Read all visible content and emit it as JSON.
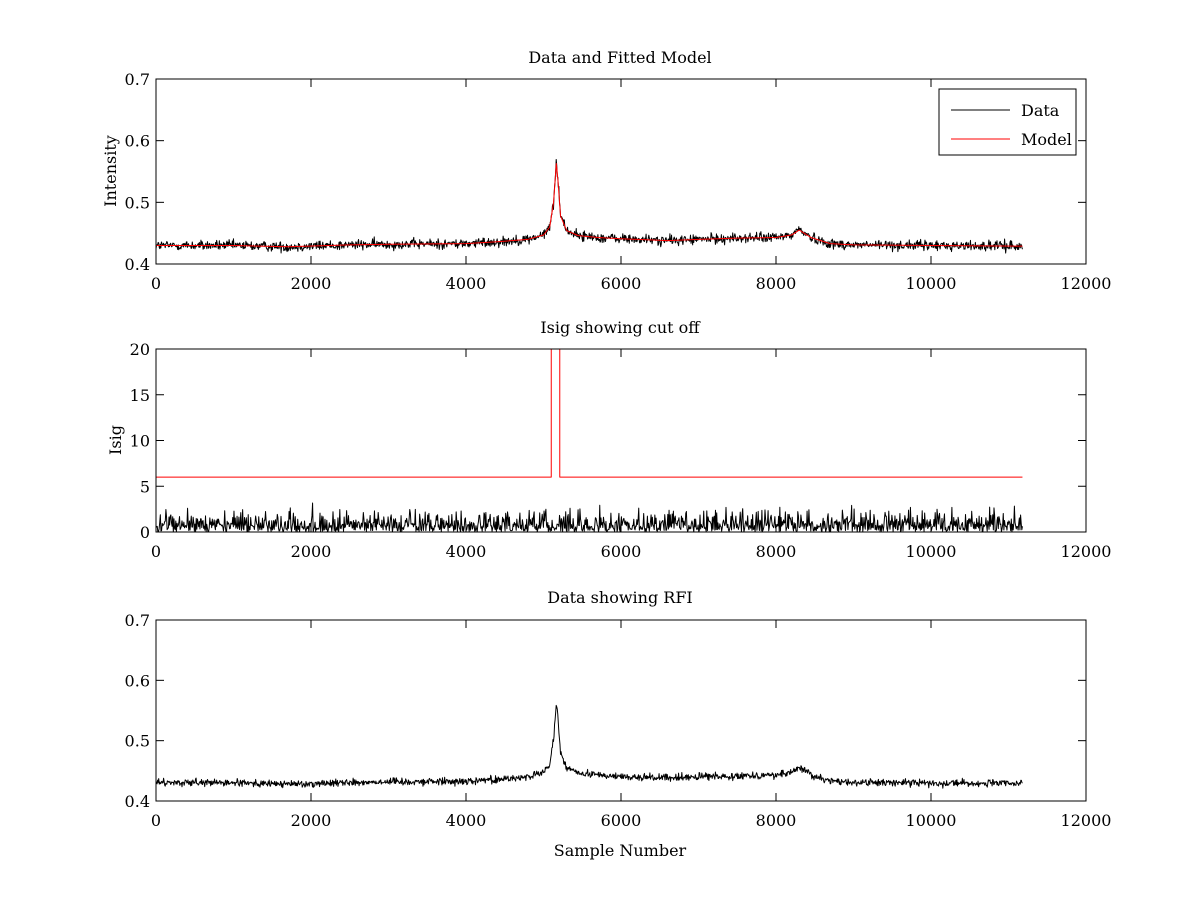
{
  "chart_data": [
    {
      "id": "top",
      "type": "line",
      "title": "Data and Fitted Model",
      "xlabel": "",
      "ylabel": "Intensity",
      "xlim": [
        0,
        12000
      ],
      "ylim": [
        0.4,
        0.7
      ],
      "xticks": [
        0,
        2000,
        4000,
        6000,
        8000,
        10000,
        12000
      ],
      "yticks": [
        0.4,
        0.5,
        0.6,
        0.7
      ],
      "grid": false,
      "legend": {
        "placement": "top-right",
        "entries": [
          "Data",
          "Model"
        ]
      },
      "series": [
        {
          "name": "Data",
          "color": "#000000",
          "x_range": [
            0,
            11180
          ],
          "noise": 0.004,
          "x": [
            0,
            1000,
            1700,
            2500,
            3000,
            4000,
            4400,
            4800,
            5000,
            5080,
            5130,
            5165,
            5185,
            5220,
            5300,
            5450,
            5700,
            6000,
            6600,
            7000,
            7500,
            8000,
            8200,
            8300,
            8450,
            8700,
            9000,
            10000,
            11180
          ],
          "values": [
            0.43,
            0.43,
            0.428,
            0.431,
            0.432,
            0.433,
            0.436,
            0.44,
            0.447,
            0.46,
            0.5,
            0.565,
            0.54,
            0.48,
            0.455,
            0.446,
            0.443,
            0.441,
            0.438,
            0.44,
            0.442,
            0.443,
            0.447,
            0.457,
            0.443,
            0.433,
            0.431,
            0.43,
            0.429
          ]
        },
        {
          "name": "Model",
          "color": "#ff0000",
          "x_range": [
            0,
            11180
          ],
          "noise": 0,
          "x": [
            0,
            1000,
            1700,
            2500,
            3000,
            4000,
            4400,
            4800,
            5000,
            5080,
            5130,
            5165,
            5185,
            5220,
            5300,
            5450,
            5700,
            6000,
            6600,
            7000,
            7500,
            8000,
            8200,
            8300,
            8450,
            8700,
            9000,
            10000,
            11180
          ],
          "values": [
            0.43,
            0.43,
            0.428,
            0.431,
            0.432,
            0.433,
            0.436,
            0.44,
            0.447,
            0.46,
            0.5,
            0.563,
            0.538,
            0.478,
            0.454,
            0.446,
            0.443,
            0.441,
            0.438,
            0.44,
            0.442,
            0.443,
            0.447,
            0.455,
            0.443,
            0.433,
            0.431,
            0.43,
            0.429
          ]
        }
      ]
    },
    {
      "id": "middle",
      "type": "line",
      "title": "Isig showing cut off",
      "xlabel": "",
      "ylabel": "Isig",
      "xlim": [
        0,
        12000
      ],
      "ylim": [
        0,
        20
      ],
      "xticks": [
        0,
        2000,
        4000,
        6000,
        8000,
        10000,
        12000
      ],
      "yticks": [
        0,
        5,
        10,
        15,
        20
      ],
      "grid": false,
      "series": [
        {
          "name": "",
          "color": "#000000",
          "kind": "abs-noise",
          "x_range": [
            0,
            11180
          ],
          "scale": 1.0
        },
        {
          "name": "",
          "color": "#ff0000",
          "x": [
            0,
            5100,
            5100,
            5210,
            5210,
            11180
          ],
          "values": [
            6,
            6,
            20,
            20,
            6,
            6
          ]
        }
      ]
    },
    {
      "id": "bottom",
      "type": "line",
      "title": "Data showing RFI",
      "xlabel": "Sample Number",
      "ylabel": "",
      "xlim": [
        0,
        12000
      ],
      "ylim": [
        0.4,
        0.7
      ],
      "xticks": [
        0,
        2000,
        4000,
        6000,
        8000,
        10000,
        12000
      ],
      "yticks": [
        0.4,
        0.5,
        0.6,
        0.7
      ],
      "grid": false,
      "series": [
        {
          "name": "",
          "color": "#000000",
          "x_range": [
            0,
            11180
          ],
          "noise": 0.003,
          "x": [
            0,
            1000,
            1700,
            2500,
            3000,
            4000,
            4400,
            4800,
            5000,
            5080,
            5130,
            5165,
            5185,
            5220,
            5300,
            5450,
            5700,
            6000,
            6600,
            7000,
            7500,
            8000,
            8200,
            8300,
            8450,
            8700,
            9000,
            10000,
            11180
          ],
          "values": [
            0.43,
            0.43,
            0.428,
            0.431,
            0.432,
            0.433,
            0.436,
            0.44,
            0.447,
            0.46,
            0.5,
            0.565,
            0.54,
            0.48,
            0.455,
            0.446,
            0.443,
            0.441,
            0.438,
            0.44,
            0.442,
            0.443,
            0.447,
            0.457,
            0.443,
            0.433,
            0.431,
            0.43,
            0.429
          ]
        }
      ]
    }
  ]
}
